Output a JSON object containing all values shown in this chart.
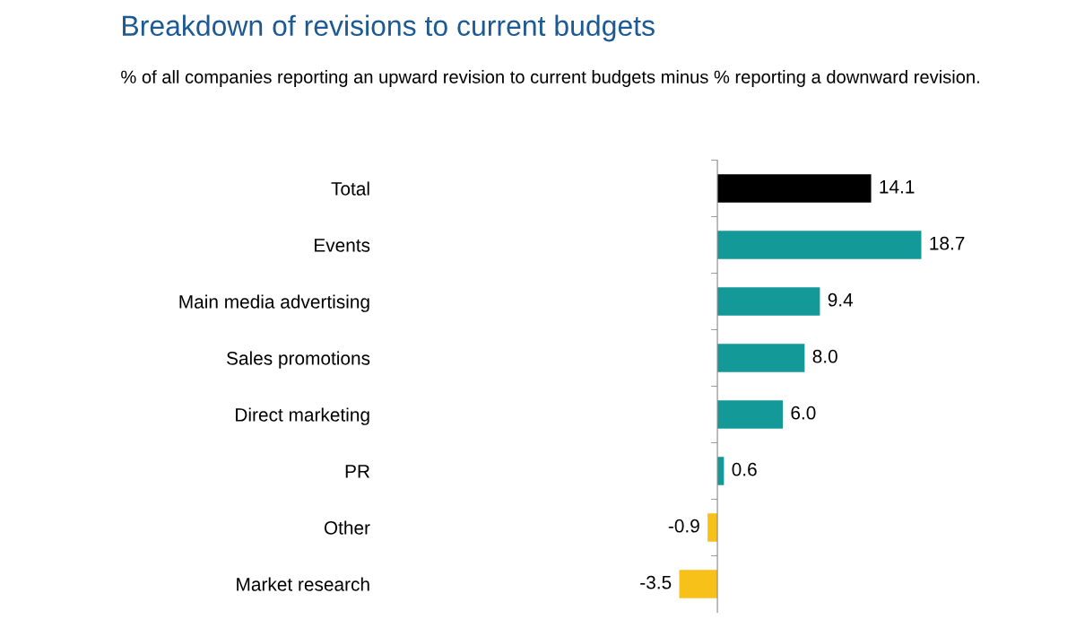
{
  "chart_data": {
    "type": "bar",
    "orientation": "horizontal",
    "title": "Breakdown of revisions to current budgets",
    "subtitle": "% of all companies reporting an upward revision to current budgets minus % reporting a downward revision.",
    "categories": [
      "Total",
      "Events",
      "Main media advertising",
      "Sales promotions",
      "Direct marketing",
      "PR",
      "Other",
      "Market research"
    ],
    "values": [
      14.1,
      18.7,
      9.4,
      8.0,
      6.0,
      0.6,
      -0.9,
      -3.5
    ],
    "colors": [
      "#000000",
      "#139a98",
      "#139a98",
      "#139a98",
      "#139a98",
      "#139a98",
      "#f7c11a",
      "#f7c11a"
    ],
    "value_labels": [
      "14.1",
      "18.7",
      "9.4",
      "8.0",
      "6.0",
      "0.6",
      "-0.9",
      "-3.5"
    ],
    "grid": false,
    "legend": false
  }
}
